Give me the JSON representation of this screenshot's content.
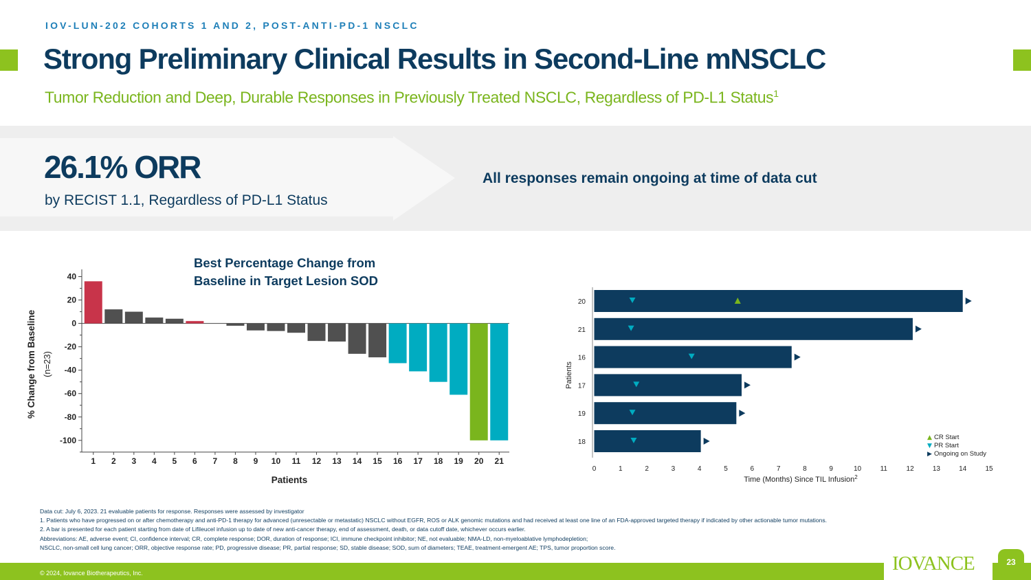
{
  "header": {
    "eyebrow": "IOV-LUN-202 COHORTS 1 AND 2, POST-ANTI-PD-1 NSCLC",
    "title": "Strong Preliminary Clinical Results in Second-Line mNSCLC",
    "subtitle": "Tumor Reduction and Deep, Durable Responses in Previously Treated NSCLC, Regardless of PD-L1 Status",
    "subtitle_sup": "1"
  },
  "highlight": {
    "orr": "26.1% ORR",
    "orr_sub": "by RECIST 1.1, Regardless of PD-L1 Status",
    "ongoing": "All responses remain ongoing at time of data cut"
  },
  "colors": {
    "navy": "#0d3b5e",
    "green": "#8dc21f",
    "red": "#c8344a",
    "gray": "#505050",
    "teal": "#00acc1",
    "bar_green": "#7ab51d"
  },
  "chart_data": [
    {
      "type": "bar",
      "title": "Best Percentage Change from Baseline in Target Lesion SOD",
      "xlabel": "Patients",
      "ylabel": "% Change from Baseline",
      "ylabel_sub": "(n=23)",
      "ylim": [
        -110,
        45
      ],
      "yticks": [
        40,
        20,
        0,
        -20,
        -40,
        -60,
        -80,
        -100
      ],
      "ytick_labels": [
        "40",
        "20",
        "0",
        "-20",
        "-40",
        "-60",
        "-80",
        "-100"
      ],
      "categories": [
        "1",
        "2",
        "3",
        "4",
        "5",
        "6",
        "7",
        "8",
        "9",
        "10",
        "11",
        "12",
        "13",
        "14",
        "15",
        "16",
        "17",
        "18",
        "19",
        "20",
        "21"
      ],
      "bars": [
        {
          "value": 36,
          "color": "#c8344a"
        },
        {
          "value": 12,
          "color": "#505050"
        },
        {
          "value": 10,
          "color": "#505050"
        },
        {
          "value": 5,
          "color": "#505050"
        },
        {
          "value": 4,
          "color": "#505050"
        },
        {
          "value": 2,
          "color": "#c8344a"
        },
        {
          "value": 0,
          "color": "#505050"
        },
        {
          "value": -2,
          "color": "#505050"
        },
        {
          "value": -6,
          "color": "#505050"
        },
        {
          "value": -6.5,
          "color": "#505050"
        },
        {
          "value": -8,
          "color": "#505050"
        },
        {
          "value": -15,
          "color": "#505050"
        },
        {
          "value": -15.5,
          "color": "#505050"
        },
        {
          "value": -26,
          "color": "#505050"
        },
        {
          "value": -29,
          "color": "#505050"
        },
        {
          "value": -34,
          "color": "#00acc1"
        },
        {
          "value": -41,
          "color": "#00acc1"
        },
        {
          "value": -50,
          "color": "#00acc1"
        },
        {
          "value": -61,
          "color": "#00acc1"
        },
        {
          "value": -100,
          "color": "#7ab51d"
        },
        {
          "value": -100,
          "color": "#00acc1"
        }
      ]
    },
    {
      "type": "swimmer",
      "xlabel": "Time (Months) Since TIL Infusion",
      "xlabel_sup": "2",
      "ylabel": "Patients",
      "xlim": [
        0,
        15
      ],
      "xticks": [
        "0",
        "1",
        "2",
        "3",
        "4",
        "5",
        "6",
        "7",
        "8",
        "9",
        "10",
        "11",
        "12",
        "13",
        "14",
        "15"
      ],
      "patients": [
        {
          "id": "20",
          "duration": 14.0,
          "pr": 1.45,
          "cr": 5.45
        },
        {
          "id": "21",
          "duration": 12.1,
          "pr": 1.4,
          "cr": null
        },
        {
          "id": "16",
          "duration": 7.5,
          "pr": 3.7,
          "cr": null
        },
        {
          "id": "17",
          "duration": 5.6,
          "pr": 1.6,
          "cr": null
        },
        {
          "id": "19",
          "duration": 5.4,
          "pr": 1.45,
          "cr": null
        },
        {
          "id": "18",
          "duration": 4.05,
          "pr": 1.5,
          "cr": null
        }
      ],
      "legend": [
        {
          "symbol": "▲",
          "label": "CR Start",
          "color": "#7ab51d"
        },
        {
          "symbol": "▼",
          "label": "PR Start",
          "color": "#00acc1"
        },
        {
          "symbol": "▶",
          "label": "Ongoing on Study",
          "color": "#0d3b5e"
        }
      ]
    }
  ],
  "footnotes": [
    "Data cut: July 6, 2023. 21 evaluable patients for response. Responses were assessed by investigator",
    "1. Patients who have progressed on or after chemotherapy and anti-PD-1 therapy for advanced (unresectable or metastatic) NSCLC without EGFR, ROS or ALK genomic mutations and had received at least one line of an FDA-approved targeted therapy if indicated by other actionable tumor mutations.",
    "2. A bar is presented for each patient starting from date of Lifileucel infusion up to date of new anti-cancer therapy, end of assessment, death, or data cutoff date, whichever occurs earlier.",
    "Abbreviations: AE, adverse event; CI, confidence interval; CR, complete response; DOR, duration of response; ICI, immune checkpoint inhibitor; NE, not evaluable; NMA-LD, non-myeloablative lymphodepletion;",
    "NSCLC, non-small cell lung cancer; ORR, objective response rate; PD, progressive disease; PR, partial response; SD, stable disease; SOD, sum of diameters; TEAE, treatment-emergent AE; TPS, tumor proportion score."
  ],
  "footer": {
    "copyright": "© 2024, Iovance Biotherapeutics, Inc.",
    "logo": "IOVANCE",
    "page": "23"
  }
}
